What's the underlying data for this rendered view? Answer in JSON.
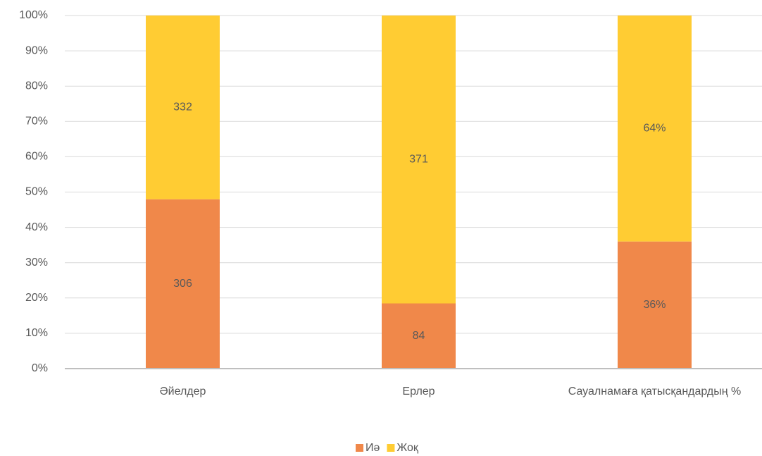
{
  "chart_data": {
    "type": "bar",
    "stacking": "percent",
    "categories": [
      "Әйелдер",
      "Ерлер",
      "Сауалнамаға қатысқандардың %"
    ],
    "series": [
      {
        "name": "Иә",
        "color": "#f0884a",
        "values": [
          306,
          84,
          36
        ],
        "value_labels": [
          "306",
          "84",
          "36%"
        ]
      },
      {
        "name": "Жоқ",
        "color": "#ffcc33",
        "values": [
          332,
          371,
          64
        ],
        "value_labels": [
          "332",
          "371",
          "64%"
        ]
      }
    ],
    "ylim": [
      0,
      100
    ],
    "yticks": [
      {
        "value": 0,
        "label": "0%"
      },
      {
        "value": 10,
        "label": "10%"
      },
      {
        "value": 20,
        "label": "20%"
      },
      {
        "value": 30,
        "label": "30%"
      },
      {
        "value": 40,
        "label": "40%"
      },
      {
        "value": 50,
        "label": "50%"
      },
      {
        "value": 60,
        "label": "60%"
      },
      {
        "value": 70,
        "label": "70%"
      },
      {
        "value": 80,
        "label": "80%"
      },
      {
        "value": 90,
        "label": "90%"
      },
      {
        "value": 100,
        "label": "100%"
      }
    ],
    "grid": true,
    "legend": "bottom"
  }
}
